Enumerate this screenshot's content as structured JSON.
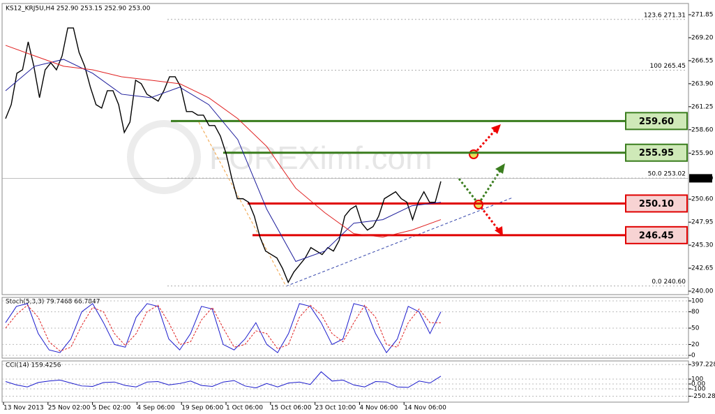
{
  "chart_data": [
    {
      "type": "line",
      "title": "KS12_KRJ5U,H4 252.90 253.15 252.90 253.00",
      "watermark": "FOREXimf.com",
      "ylim": [
        239.6,
        272.9
      ],
      "yticks": [
        {
          "value": 240,
          "label": "240.00"
        },
        {
          "value": 242.65,
          "label": "242.65"
        },
        {
          "value": 245.3,
          "label": "245.30"
        },
        {
          "value": 247.95,
          "label": "247.95"
        },
        {
          "value": 250.6,
          "label": "250.60"
        },
        {
          "value": 255.9,
          "label": "255.90"
        },
        {
          "value": 258.6,
          "label": "258.60"
        },
        {
          "value": 261.25,
          "label": "261.25"
        },
        {
          "value": 263.9,
          "label": "263.90"
        },
        {
          "value": 266.55,
          "label": "266.55"
        },
        {
          "value": 269.2,
          "label": "269.20"
        },
        {
          "value": 271.85,
          "label": "271.85"
        }
      ],
      "series": [
        {
          "color": "#000000",
          "values": [
            259.88,
            261.49,
            265.1,
            265.5,
            268.72,
            265.91,
            262.29,
            265.5,
            266.31,
            265.5,
            267.11,
            270.32,
            270.32,
            267.51,
            265.91,
            263.5,
            261.49,
            261.09,
            263.09,
            263.09,
            261.49,
            258.28,
            259.48,
            264.3,
            263.9,
            262.69,
            262.29,
            261.89,
            263.09,
            264.7,
            264.7,
            263.5,
            260.69,
            260.69,
            260.28,
            260.28,
            259.08,
            259.08,
            257.87,
            255.87,
            253.05,
            250.65,
            250.65,
            250.24,
            248.64,
            246.23,
            244.62,
            244.22,
            243.82,
            242.61,
            241.01,
            242.21,
            243.01,
            243.82,
            245.02,
            244.62,
            244.22,
            245.02,
            244.62,
            245.83,
            248.64,
            249.44,
            249.84,
            247.83,
            247.03,
            247.43,
            248.64,
            250.65,
            251.05,
            251.45,
            250.65,
            250.24,
            248.24,
            250.24,
            251.45,
            250.24,
            250.24,
            252.65
          ]
        },
        {
          "color": "#1a1a9a",
          "values": [
            263.09,
            265.91,
            266.71,
            265.1,
            262.69,
            262.29,
            263.5,
            261.49,
            257.47,
            249.44,
            243.42,
            244.62,
            247.83,
            248.24,
            249.84,
            250.24
          ]
        },
        {
          "color": "#e02020",
          "values": [
            268.32,
            267.11,
            265.91,
            265.5,
            264.7,
            264.3,
            263.9,
            262.29,
            259.88,
            256.67,
            251.85,
            249.04,
            246.63,
            246.23,
            247.03,
            248.24
          ]
        }
      ],
      "levels": [
        {
          "value": 259.6,
          "label": "259.60",
          "color": "#3a7d1e",
          "fill": "#cfe9b8"
        },
        {
          "value": 255.95,
          "label": "255.95",
          "color": "#3a7d1e",
          "fill": "#cfe9b8"
        },
        {
          "value": 250.1,
          "label": "250.10",
          "color": "#e00000",
          "fill": "#f7d3d3"
        },
        {
          "value": 246.45,
          "label": "246.45",
          "color": "#e00000",
          "fill": "#f7d3d3"
        }
      ],
      "fib_levels": [
        {
          "value": 271.31,
          "label": "123.6  271.31"
        },
        {
          "value": 265.45,
          "label": "100  265.45"
        },
        {
          "value": 253.02,
          "label": "50.0  253.02"
        },
        {
          "value": 240.6,
          "label": "0.0  240.60"
        }
      ],
      "last_price": {
        "value": 253,
        "label": "253.00"
      }
    },
    {
      "type": "line",
      "title": "Stoch(5,3,3) 79.7468 66.7847",
      "ylim": [
        -5.1,
        106.4
      ],
      "yticks": [
        0,
        20,
        50,
        80,
        100
      ],
      "series": [
        {
          "color": "#1a1acc",
          "values": [
            60,
            90,
            95,
            40,
            10,
            5,
            30,
            80,
            95,
            60,
            20,
            15,
            70,
            95,
            90,
            30,
            10,
            40,
            90,
            85,
            20,
            10,
            30,
            60,
            20,
            5,
            40,
            95,
            90,
            60,
            20,
            30,
            95,
            90,
            40,
            5,
            30,
            90,
            80,
            40,
            80
          ]
        },
        {
          "color": "#e02020",
          "values": [
            50,
            75,
            92,
            70,
            25,
            8,
            15,
            55,
            88,
            80,
            40,
            18,
            40,
            80,
            92,
            60,
            20,
            25,
            65,
            88,
            50,
            15,
            20,
            45,
            40,
            12,
            20,
            70,
            92,
            75,
            40,
            25,
            60,
            92,
            70,
            20,
            15,
            60,
            85,
            60,
            60
          ]
        }
      ]
    },
    {
      "type": "line",
      "title": "CCI(14) 159.4256",
      "ylim": [
        -371,
        457
      ],
      "yticks": [
        397.2282,
        100,
        {
          "value": 0,
          "label": "0.00"
        },
        -100,
        -250.2891
      ],
      "series": [
        {
          "color": "#1a1acc",
          "values": [
            50,
            -20,
            -60,
            30,
            60,
            80,
            20,
            -40,
            -50,
            30,
            40,
            -30,
            -60,
            40,
            50,
            -20,
            10,
            60,
            -30,
            -50,
            40,
            70,
            -40,
            -80,
            10,
            -60,
            20,
            40,
            -10,
            250,
            60,
            80,
            -20,
            -60,
            50,
            40,
            -60,
            -70,
            60,
            20,
            160
          ]
        }
      ],
      "xticks": [
        "13 Nov 2013",
        "25 Nov 02:00",
        "5 Dec 02:00",
        "4 Sep 06:00",
        "19 Sep 06:00",
        "1 Oct 06:00",
        "15 Oct 06:00",
        "23 Oct 10:00",
        "4 Nov 06:00",
        "14 Nov 06:00"
      ]
    }
  ]
}
